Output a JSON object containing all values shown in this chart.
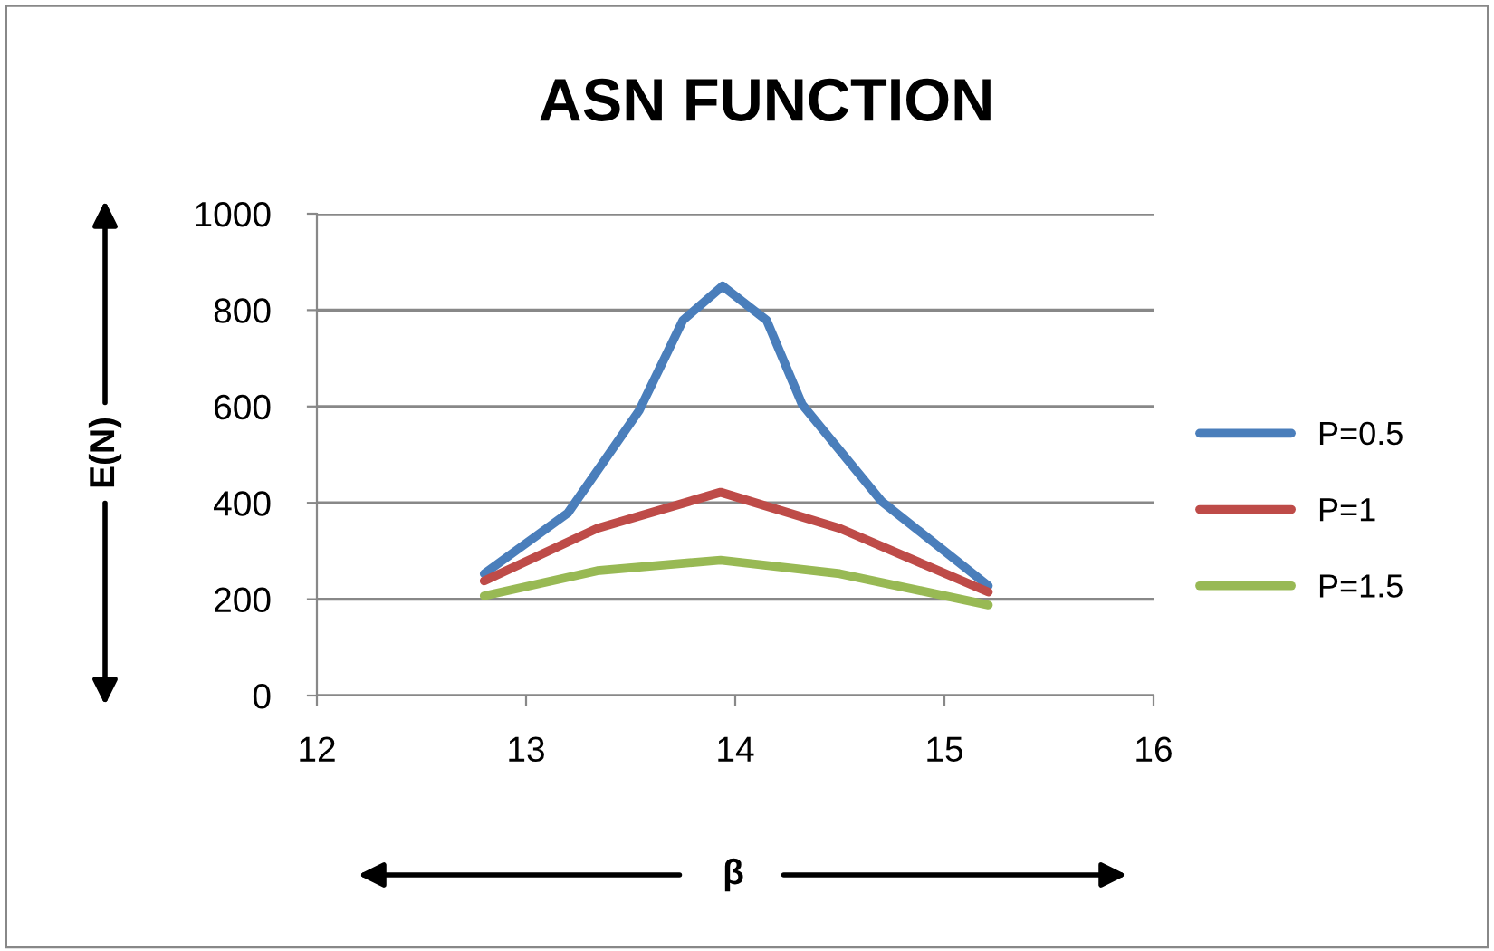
{
  "chart_data": {
    "type": "line",
    "title": "ASN FUNCTION",
    "xlabel": "β",
    "ylabel": "E(N)",
    "xlim": [
      12,
      16
    ],
    "xticks": [
      12,
      13,
      14,
      15,
      16
    ],
    "ylim": [
      0,
      1000
    ],
    "yticks": [
      0,
      200,
      400,
      600,
      800,
      1000
    ],
    "grid": "y",
    "legend": "right",
    "line_style": "solid",
    "series": [
      {
        "name": "P=0.5",
        "color": "#4a7ebb",
        "x": [
          12.8,
          13.2,
          13.54,
          13.75,
          13.94,
          14.15,
          14.32,
          14.7,
          15.21
        ],
        "values": [
          253,
          379,
          591,
          779,
          850,
          779,
          604,
          403,
          228
        ]
      },
      {
        "name": "P=1",
        "color": "#be4b48",
        "x": [
          12.8,
          13.34,
          13.93,
          14.5,
          15.21
        ],
        "values": [
          238,
          347,
          422,
          347,
          215
        ]
      },
      {
        "name": "P=1.5",
        "color": "#98b954",
        "x": [
          12.8,
          13.34,
          13.93,
          14.5,
          15.21
        ],
        "values": [
          207,
          259,
          281,
          253,
          188
        ]
      }
    ]
  }
}
